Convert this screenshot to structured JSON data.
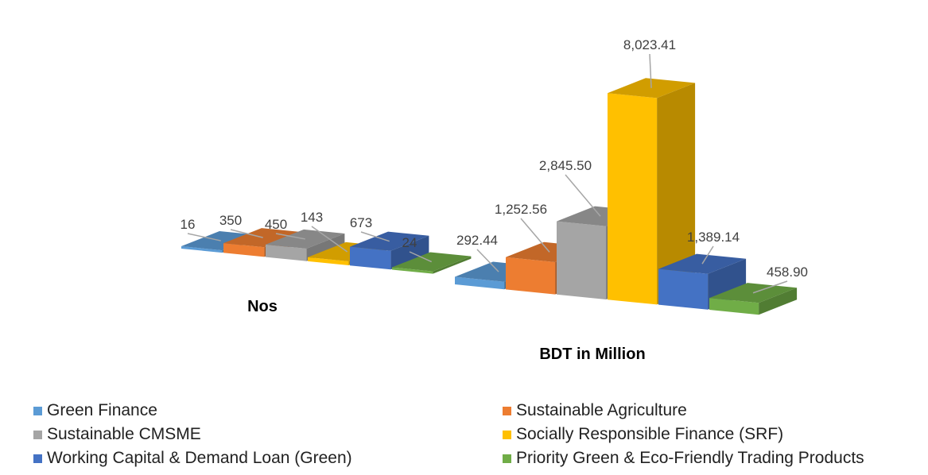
{
  "chart_data": {
    "type": "bar",
    "series": [
      {
        "name": "Green Finance",
        "color": "#5B9BD5"
      },
      {
        "name": "Sustainable Agriculture",
        "color": "#ED7D31"
      },
      {
        "name": "Sustainable CMSME",
        "color": "#A5A5A5"
      },
      {
        "name": "Socially Responsible Finance (SRF)",
        "color": "#FFC000"
      },
      {
        "name": "Working Capital & Demand Loan (Green)",
        "color": "#4472C4"
      },
      {
        "name": "Priority Green & Eco-Friendly Trading Products",
        "color": "#70AD47"
      }
    ],
    "groups": [
      {
        "label": "Nos",
        "values": [
          16,
          350,
          450,
          143,
          673,
          24
        ],
        "value_labels": [
          "16",
          "350",
          "450",
          "143",
          "673",
          "24"
        ]
      },
      {
        "label": "BDT in Million",
        "values": [
          292.44,
          1252.56,
          2845.5,
          8023.41,
          1389.14,
          458.9
        ],
        "value_labels": [
          "292.44",
          "1,252.56",
          "2,845.50",
          "8,023.41",
          "1,389.14",
          "458.90"
        ]
      }
    ],
    "style": "3d-clustered-column",
    "legend_position": "bottom",
    "grid": false
  }
}
